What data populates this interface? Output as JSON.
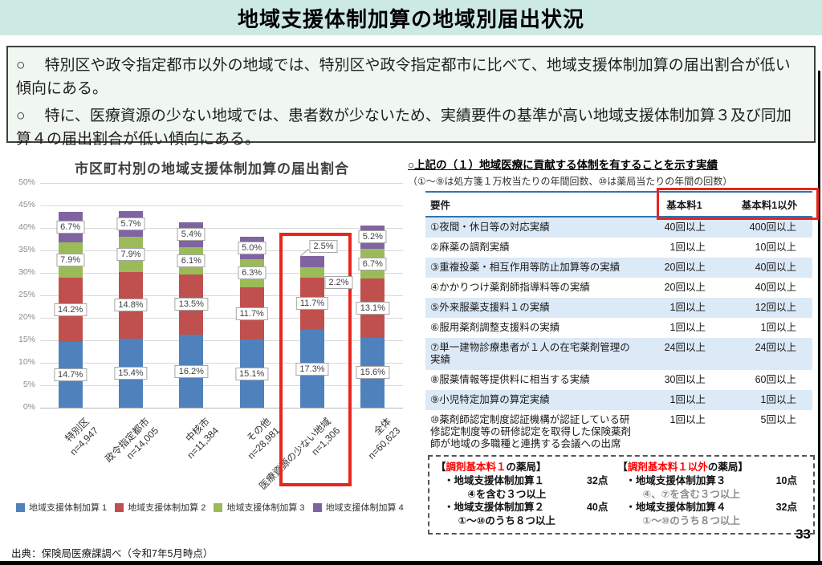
{
  "page": {
    "title": "地域支援体制加算の地域別届出状況",
    "page_number": "33",
    "source": "出典：保険局医療課調べ（令和7年5月時点）"
  },
  "summary_box": {
    "bullet_marker": "○",
    "bullets": [
      "特別区や政令指定都市以外の地域では、特別区や政令指定都市に比べて、地域支援体制加算の届出割合が低い傾向にある。",
      "特に、医療資源の少ない地域では、患者数が少ないため、実績要件の基準が高い地域支援体制加算３及び同加算４の届出割合が低い傾向にある。"
    ]
  },
  "chart_data": {
    "type": "bar",
    "stacked": true,
    "title": "市区町村別の地域支援体制加算の届出割合",
    "categories": [
      {
        "label": "特別区",
        "n": "n=4,947"
      },
      {
        "label": "政令指定都市",
        "n": "n=14,005"
      },
      {
        "label": "中核市",
        "n": "n=11,384"
      },
      {
        "label": "その他",
        "n": "n=28,981"
      },
      {
        "label": "医療資源の少ない地域",
        "n": "n=1,306"
      },
      {
        "label": "全体",
        "n": "n=60,623"
      }
    ],
    "series": [
      {
        "name": "地域支援体制加算 1",
        "color": "#4f81bd",
        "values": [
          14.7,
          15.4,
          16.2,
          15.1,
          17.3,
          15.6
        ]
      },
      {
        "name": "地域支援体制加算 2",
        "color": "#c0504d",
        "values": [
          14.2,
          14.8,
          13.5,
          11.7,
          11.7,
          13.1
        ]
      },
      {
        "name": "地域支援体制加算 3",
        "color": "#9bbb59",
        "values": [
          7.9,
          7.9,
          6.1,
          6.3,
          2.2,
          6.7
        ]
      },
      {
        "name": "地域支援体制加算 4",
        "color": "#8064a2",
        "values": [
          6.7,
          5.7,
          5.4,
          5.0,
          2.5,
          5.2
        ]
      }
    ],
    "ylim": [
      0,
      50
    ],
    "ytick_step": 5,
    "ytick_suffix": "%",
    "grid": true,
    "legend_position": "bottom",
    "highlight_category_index": 4
  },
  "table_section": {
    "heading": "○上記の（１）地域医療に貢献する体制を有することを示す実績",
    "subheading": "（①～⑨は処方箋１万枚当たりの年間回数、⑩は薬局当たりの年間の回数）",
    "columns": [
      "要件",
      "基本料1",
      "基本料1以外"
    ],
    "rows": [
      [
        "①夜間・休日等の対応実績",
        "40回以上",
        "400回以上"
      ],
      [
        "②麻薬の調剤実績",
        "1回以上",
        "10回以上"
      ],
      [
        "③重複投薬・相互作用等防止加算等の実績",
        "20回以上",
        "40回以上"
      ],
      [
        "④かかりつけ薬剤師指導料等の実績",
        "20回以上",
        "40回以上"
      ],
      [
        "⑤外来服薬支援料１の実績",
        "1回以上",
        "12回以上"
      ],
      [
        "⑥服用薬剤調整支援料の実績",
        "1回以上",
        "1回以上"
      ],
      [
        "⑦単一建物診療患者が１人の在宅薬剤管理の実績",
        "24回以上",
        "24回以上"
      ],
      [
        "⑧服薬情報等提供料に相当する実績",
        "30回以上",
        "60回以上"
      ],
      [
        "⑨小児特定加算の算定実績",
        "1回以上",
        "1回以上"
      ],
      [
        "⑩薬剤師認定制度認証機構が認証している研修認定制度等の研修認定を取得した保険薬剤師が地域の多職種と連携する会議への出席",
        "1回以上",
        "5回以上"
      ]
    ]
  },
  "points_box": {
    "left": {
      "heading_prefix": "【",
      "heading_red": "調剤基本料１",
      "heading_suffix": "の薬局】",
      "items": [
        {
          "label": "・地域支援体制加算１",
          "points": "32点",
          "condition": "④を含む３つ以上"
        },
        {
          "label": "・地域支援体制加算２",
          "points": "40点",
          "condition": "①～⑩のうち８つ以上"
        }
      ]
    },
    "right": {
      "heading_prefix": "【",
      "heading_red": "調剤基本料１以外",
      "heading_suffix": "の薬局】",
      "items": [
        {
          "label": "・地域支援体制加算３",
          "points": "10点",
          "condition": "④、⑦を含む３つ以上"
        },
        {
          "label": "・地域支援体制加算４",
          "points": "32点",
          "condition": "①～⑩のうち８つ以上"
        }
      ]
    }
  },
  "colors": {
    "title_bar_bg": "#cde9e3",
    "summary_box_bg": "#eff7f0",
    "summary_box_border": "#404040",
    "highlight_red": "#e8251f",
    "points_red_text": "#ff0000",
    "table_header_border": "#2e75b5",
    "table_row_alt_bg": "#dce9f7"
  }
}
